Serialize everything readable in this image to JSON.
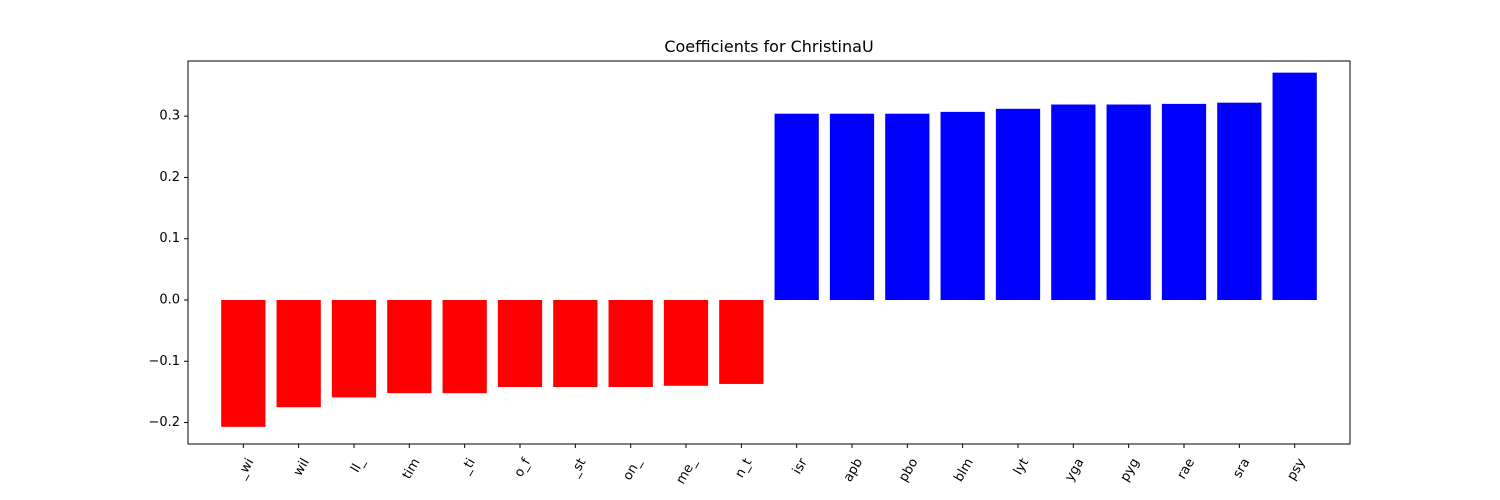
{
  "chart_data": {
    "type": "bar",
    "title": "Coefficients for ChristinaU",
    "xlabel": "",
    "ylabel": "",
    "categories": [
      "_wi",
      "wil",
      "ll_",
      "tim",
      "_ti",
      "o_f",
      "_st",
      "on_",
      "me_",
      "n_t",
      "isr",
      "apb",
      "pbo",
      "blm",
      "lyt",
      "yga",
      "pyg",
      "rae",
      "sra",
      "psy"
    ],
    "values": [
      -0.207,
      -0.175,
      -0.159,
      -0.152,
      -0.152,
      -0.142,
      -0.142,
      -0.142,
      -0.14,
      -0.137,
      0.304,
      0.304,
      0.304,
      0.307,
      0.312,
      0.319,
      0.319,
      0.32,
      0.322,
      0.371
    ],
    "ylim": [
      -0.235,
      0.39
    ],
    "yticks": [
      -0.2,
      -0.1,
      0.0,
      0.1,
      0.2,
      0.3
    ],
    "ytick_labels": [
      "−0.2",
      "−0.1",
      "0.0",
      "0.1",
      "0.2",
      "0.3"
    ],
    "colors": {
      "negative": "#ff0000",
      "positive": "#0000ff"
    },
    "grid": false,
    "legend": "none"
  }
}
